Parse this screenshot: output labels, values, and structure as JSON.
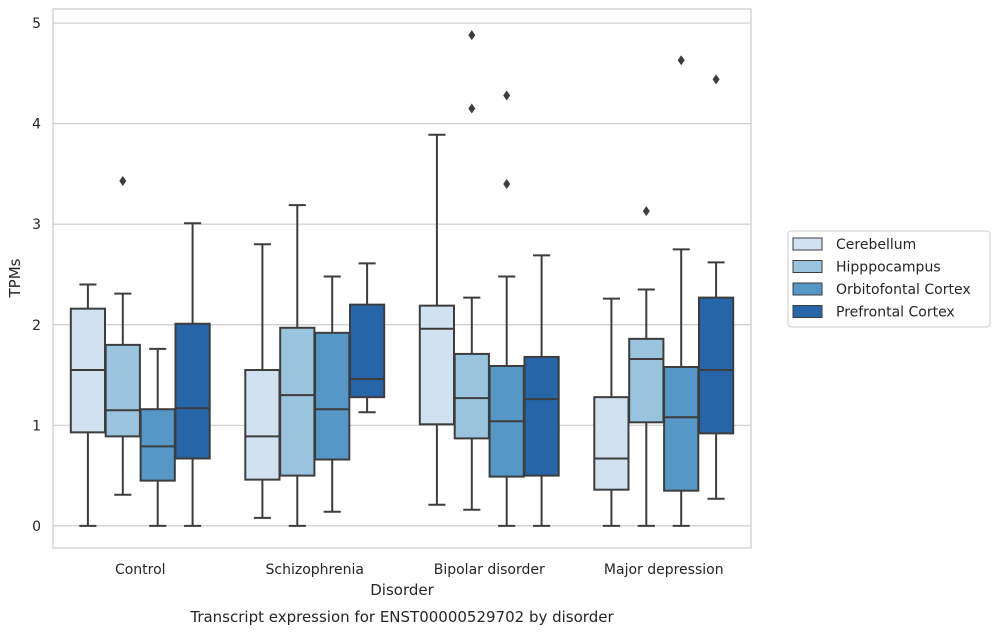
{
  "chart_data": {
    "type": "box",
    "title": "Transcript expression for ENST00000529702 by disorder",
    "xlabel": "Disorder",
    "ylabel": "TPMs",
    "ylim": [
      -0.22,
      5.14
    ],
    "yticks": [
      0,
      1,
      2,
      3,
      4,
      5
    ],
    "categories": [
      "Control",
      "Schizophrenia",
      "Bipolar disorder",
      "Major depression"
    ],
    "grid": "horizontal",
    "legend_position": "right",
    "series": [
      {
        "name": "Cerebellum",
        "color": "#d1e1f0",
        "boxes": [
          {
            "q1": 0.93,
            "median": 1.55,
            "q3": 2.16,
            "whisker_low": 0.0,
            "whisker_high": 2.4,
            "outliers": []
          },
          {
            "q1": 0.46,
            "median": 0.89,
            "q3": 1.55,
            "whisker_low": 0.08,
            "whisker_high": 2.8,
            "outliers": []
          },
          {
            "q1": 1.01,
            "median": 1.96,
            "q3": 2.19,
            "whisker_low": 0.21,
            "whisker_high": 3.89,
            "outliers": []
          },
          {
            "q1": 0.36,
            "median": 0.67,
            "q3": 1.28,
            "whisker_low": 0.0,
            "whisker_high": 2.26,
            "outliers": []
          }
        ]
      },
      {
        "name": "Hipppocampus",
        "color": "#9ac3de",
        "boxes": [
          {
            "q1": 0.89,
            "median": 1.15,
            "q3": 1.8,
            "whisker_low": 0.31,
            "whisker_high": 2.31,
            "outliers": [
              3.43
            ]
          },
          {
            "q1": 0.5,
            "median": 1.3,
            "q3": 1.97,
            "whisker_low": 0.0,
            "whisker_high": 3.19,
            "outliers": []
          },
          {
            "q1": 0.87,
            "median": 1.27,
            "q3": 1.71,
            "whisker_low": 0.16,
            "whisker_high": 2.27,
            "outliers": [
              4.88,
              4.15
            ]
          },
          {
            "q1": 1.03,
            "median": 1.66,
            "q3": 1.86,
            "whisker_low": 0.0,
            "whisker_high": 2.35,
            "outliers": [
              3.13
            ]
          }
        ]
      },
      {
        "name": "Orbitofontal Cortex",
        "color": "#5597c6",
        "boxes": [
          {
            "q1": 0.45,
            "median": 0.79,
            "q3": 1.16,
            "whisker_low": 0.0,
            "whisker_high": 1.76,
            "outliers": []
          },
          {
            "q1": 0.66,
            "median": 1.16,
            "q3": 1.92,
            "whisker_low": 0.14,
            "whisker_high": 2.48,
            "outliers": []
          },
          {
            "q1": 0.49,
            "median": 1.04,
            "q3": 1.59,
            "whisker_low": 0.0,
            "whisker_high": 2.48,
            "outliers": [
              4.28,
              3.4
            ]
          },
          {
            "q1": 0.35,
            "median": 1.08,
            "q3": 1.58,
            "whisker_low": 0.0,
            "whisker_high": 2.75,
            "outliers": [
              4.63
            ]
          }
        ]
      },
      {
        "name": "Prefrontal Cortex",
        "color": "#2666a8",
        "boxes": [
          {
            "q1": 0.67,
            "median": 1.17,
            "q3": 2.01,
            "whisker_low": 0.0,
            "whisker_high": 3.01,
            "outliers": []
          },
          {
            "q1": 1.28,
            "median": 1.46,
            "q3": 2.2,
            "whisker_low": 1.13,
            "whisker_high": 2.61,
            "outliers": []
          },
          {
            "q1": 0.5,
            "median": 1.26,
            "q3": 1.68,
            "whisker_low": 0.0,
            "whisker_high": 2.69,
            "outliers": []
          },
          {
            "q1": 0.92,
            "median": 1.55,
            "q3": 2.27,
            "whisker_low": 0.27,
            "whisker_high": 2.62,
            "outliers": [
              4.44
            ]
          }
        ]
      }
    ]
  }
}
